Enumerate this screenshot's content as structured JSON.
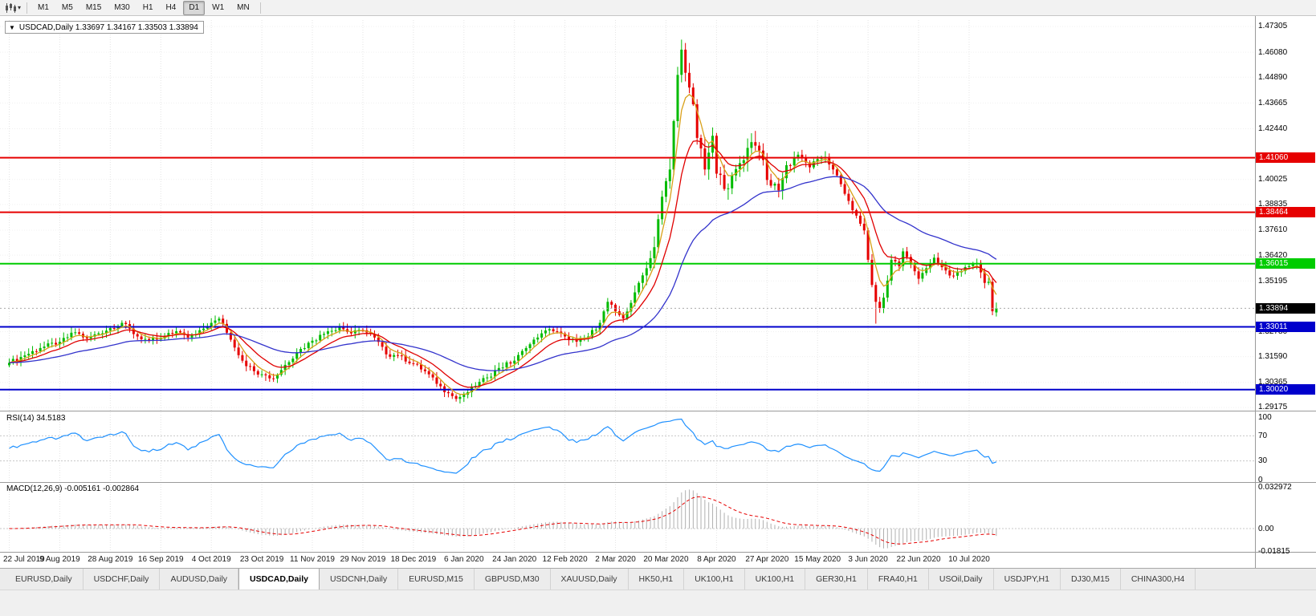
{
  "toolbar": {
    "timeframes": [
      "M1",
      "M5",
      "M15",
      "M30",
      "H1",
      "H4",
      "D1",
      "W1",
      "MN"
    ],
    "active_timeframe": "D1"
  },
  "chart": {
    "title": "USDCAD,Daily 1.33697 1.34167 1.33503 1.33894",
    "symbol": "USDCAD,Daily",
    "ohlc": {
      "open": "1.33697",
      "high": "1.34167",
      "low": "1.33503",
      "close": "1.33894"
    }
  },
  "price_axis": {
    "labels": [
      "1.47305",
      "1.46080",
      "1.44890",
      "1.43665",
      "1.42440",
      "1.40025",
      "1.38835",
      "1.37610",
      "1.36420",
      "1.35195",
      "1.32780",
      "1.31590",
      "1.30365",
      "1.29175"
    ]
  },
  "levels": [
    {
      "label": "1.41060",
      "price": 1.4106,
      "color": "#e60000"
    },
    {
      "label": "1.38464",
      "price": 1.38464,
      "color": "#e60000"
    },
    {
      "label": "1.36015",
      "price": 1.36015,
      "color": "#00cc00"
    },
    {
      "label": "1.33011",
      "price": 1.33011,
      "color": "#0000cc"
    },
    {
      "label": "1.30020",
      "price": 1.3002,
      "color": "#0000cc"
    }
  ],
  "current_price": {
    "label": "1.33894",
    "price": 1.33894,
    "badge_color": "#000000"
  },
  "date_axis": {
    "ticks": [
      {
        "label": "22 Jul 2019",
        "bar": 0
      },
      {
        "label": "9 Aug 2019",
        "bar": 13
      },
      {
        "label": "28 Aug 2019",
        "bar": 26
      },
      {
        "label": "16 Sep 2019",
        "bar": 39
      },
      {
        "label": "4 Oct 2019",
        "bar": 52
      },
      {
        "label": "23 Oct 2019",
        "bar": 65
      },
      {
        "label": "11 Nov 2019",
        "bar": 78
      },
      {
        "label": "29 Nov 2019",
        "bar": 91
      },
      {
        "label": "18 Dec 2019",
        "bar": 104
      },
      {
        "label": "6 Jan 2020",
        "bar": 117
      },
      {
        "label": "24 Jan 2020",
        "bar": 130
      },
      {
        "label": "12 Feb 2020",
        "bar": 143
      },
      {
        "label": "2 Mar 2020",
        "bar": 156
      },
      {
        "label": "20 Mar 2020",
        "bar": 169
      },
      {
        "label": "8 Apr 2020",
        "bar": 182
      },
      {
        "label": "27 Apr 2020",
        "bar": 195
      },
      {
        "label": "15 May 2020",
        "bar": 208
      },
      {
        "label": "3 Jun 2020",
        "bar": 221
      },
      {
        "label": "22 Jun 2020",
        "bar": 234
      },
      {
        "label": "10 Jul 2020",
        "bar": 247
      }
    ]
  },
  "rsi": {
    "label": "RSI(14) 34.5183",
    "period": 14,
    "value": "34.5183",
    "line_color": "#1e90ff",
    "axis": [
      {
        "label": "100",
        "value": 100
      },
      {
        "label": "70",
        "value": 70
      },
      {
        "label": "30",
        "value": 30
      },
      {
        "label": "0",
        "value": 0
      }
    ],
    "dashed_levels": [
      70,
      30
    ]
  },
  "macd": {
    "label": "MACD(12,26,9) -0.005161 -0.002864",
    "values": {
      "macd": "-0.005161",
      "signal": "-0.002864"
    },
    "histogram_color": "#b0b0b0",
    "signal_color": "#e60000",
    "axis": [
      {
        "label": "0.032972",
        "value": 0.032972
      },
      {
        "label": "0.00",
        "value": 0
      },
      {
        "label": "-0.01815",
        "value": -0.01815
      }
    ]
  },
  "chart_data": {
    "type": "candlestick",
    "symbol": "USDCAD",
    "timeframe": "Daily",
    "bars": 255,
    "up_color": "#00bb00",
    "down_color": "#e60000",
    "ma_lines": [
      {
        "name": "ema-fast",
        "period": 5,
        "color": "#d8a018"
      },
      {
        "name": "ema-mid",
        "period": 12,
        "color": "#e00000"
      },
      {
        "name": "ema-slow",
        "period": 40,
        "color": "#3333cc"
      }
    ],
    "anchors": [
      [
        0,
        1.313
      ],
      [
        4,
        1.3165
      ],
      [
        8,
        1.32
      ],
      [
        13,
        1.323
      ],
      [
        17,
        1.3275
      ],
      [
        20,
        1.3245
      ],
      [
        23,
        1.327
      ],
      [
        26,
        1.3295
      ],
      [
        29,
        1.332
      ],
      [
        33,
        1.3255
      ],
      [
        36,
        1.3235
      ],
      [
        39,
        1.3245
      ],
      [
        43,
        1.328
      ],
      [
        46,
        1.325
      ],
      [
        49,
        1.3285
      ],
      [
        52,
        1.332
      ],
      [
        54,
        1.334
      ],
      [
        57,
        1.324
      ],
      [
        60,
        1.314
      ],
      [
        63,
        1.309
      ],
      [
        65,
        1.3075
      ],
      [
        68,
        1.3055
      ],
      [
        71,
        1.312
      ],
      [
        74,
        1.318
      ],
      [
        78,
        1.3235
      ],
      [
        82,
        1.328
      ],
      [
        85,
        1.33
      ],
      [
        88,
        1.327
      ],
      [
        91,
        1.3285
      ],
      [
        94,
        1.325
      ],
      [
        97,
        1.317
      ],
      [
        100,
        1.3165
      ],
      [
        104,
        1.3125
      ],
      [
        107,
        1.309
      ],
      [
        110,
        1.303
      ],
      [
        113,
        1.2985
      ],
      [
        115,
        1.2958
      ],
      [
        117,
        1.2978
      ],
      [
        120,
        1.302
      ],
      [
        123,
        1.306
      ],
      [
        126,
        1.3105
      ],
      [
        130,
        1.314
      ],
      [
        133,
        1.32
      ],
      [
        136,
        1.325
      ],
      [
        139,
        1.329
      ],
      [
        143,
        1.3255
      ],
      [
        146,
        1.323
      ],
      [
        149,
        1.3255
      ],
      [
        152,
        1.332
      ],
      [
        154,
        1.342
      ],
      [
        156,
        1.3375
      ],
      [
        158,
        1.334
      ],
      [
        160,
        1.3415
      ],
      [
        162,
        1.351
      ],
      [
        164,
        1.358
      ],
      [
        166,
        1.368
      ],
      [
        168,
        1.392
      ],
      [
        170,
        1.405
      ],
      [
        171,
        1.428
      ],
      [
        172,
        1.45
      ],
      [
        173,
        1.462
      ],
      [
        174,
        1.451
      ],
      [
        175,
        1.444
      ],
      [
        176,
        1.436
      ],
      [
        177,
        1.42
      ],
      [
        178,
        1.415
      ],
      [
        179,
        1.405
      ],
      [
        180,
        1.413
      ],
      [
        181,
        1.421
      ],
      [
        182,
        1.403
      ],
      [
        185,
        1.396
      ],
      [
        188,
        1.408
      ],
      [
        191,
        1.418
      ],
      [
        193,
        1.414
      ],
      [
        195,
        1.4
      ],
      [
        198,
        1.395
      ],
      [
        200,
        1.407
      ],
      [
        203,
        1.412
      ],
      [
        206,
        1.406
      ],
      [
        208,
        1.41
      ],
      [
        210,
        1.411
      ],
      [
        212,
        1.405
      ],
      [
        214,
        1.398
      ],
      [
        216,
        1.39
      ],
      [
        218,
        1.383
      ],
      [
        220,
        1.376
      ],
      [
        221,
        1.362
      ],
      [
        222,
        1.35
      ],
      [
        223,
        1.342
      ],
      [
        224,
        1.339
      ],
      [
        225,
        1.344
      ],
      [
        227,
        1.362
      ],
      [
        229,
        1.359
      ],
      [
        230,
        1.366
      ],
      [
        232,
        1.3605
      ],
      [
        234,
        1.353
      ],
      [
        236,
        1.358
      ],
      [
        238,
        1.363
      ],
      [
        240,
        1.3585
      ],
      [
        242,
        1.3545
      ],
      [
        244,
        1.356
      ],
      [
        247,
        1.359
      ],
      [
        249,
        1.3605
      ],
      [
        250,
        1.356
      ],
      [
        251,
        1.351
      ],
      [
        252,
        1.3515
      ],
      [
        253,
        1.3375
      ],
      [
        254,
        1.33894
      ]
    ],
    "overrides": {
      "115": {
        "low": 1.2945
      },
      "173": {
        "high": 1.4668
      },
      "223": {
        "low": 1.3316
      },
      "254": {
        "open": 1.33697,
        "high": 1.34167,
        "low": 1.33503,
        "close": 1.33894
      }
    }
  },
  "tabs": {
    "active": "USDCAD,Daily",
    "active_index": 3,
    "items": [
      "EURUSD,Daily",
      "USDCHF,Daily",
      "AUDUSD,Daily",
      "USDCAD,Daily",
      "USDCNH,Daily",
      "EURUSD,M15",
      "GBPUSD,M30",
      "XAUUSD,Daily",
      "HK50,H1",
      "UK100,H1",
      "UK100,H1",
      "GER30,H1",
      "FRA40,H1",
      "USOil,Daily",
      "USDJPY,H1",
      "DJ30,M15",
      "CHINA300,H4"
    ]
  }
}
